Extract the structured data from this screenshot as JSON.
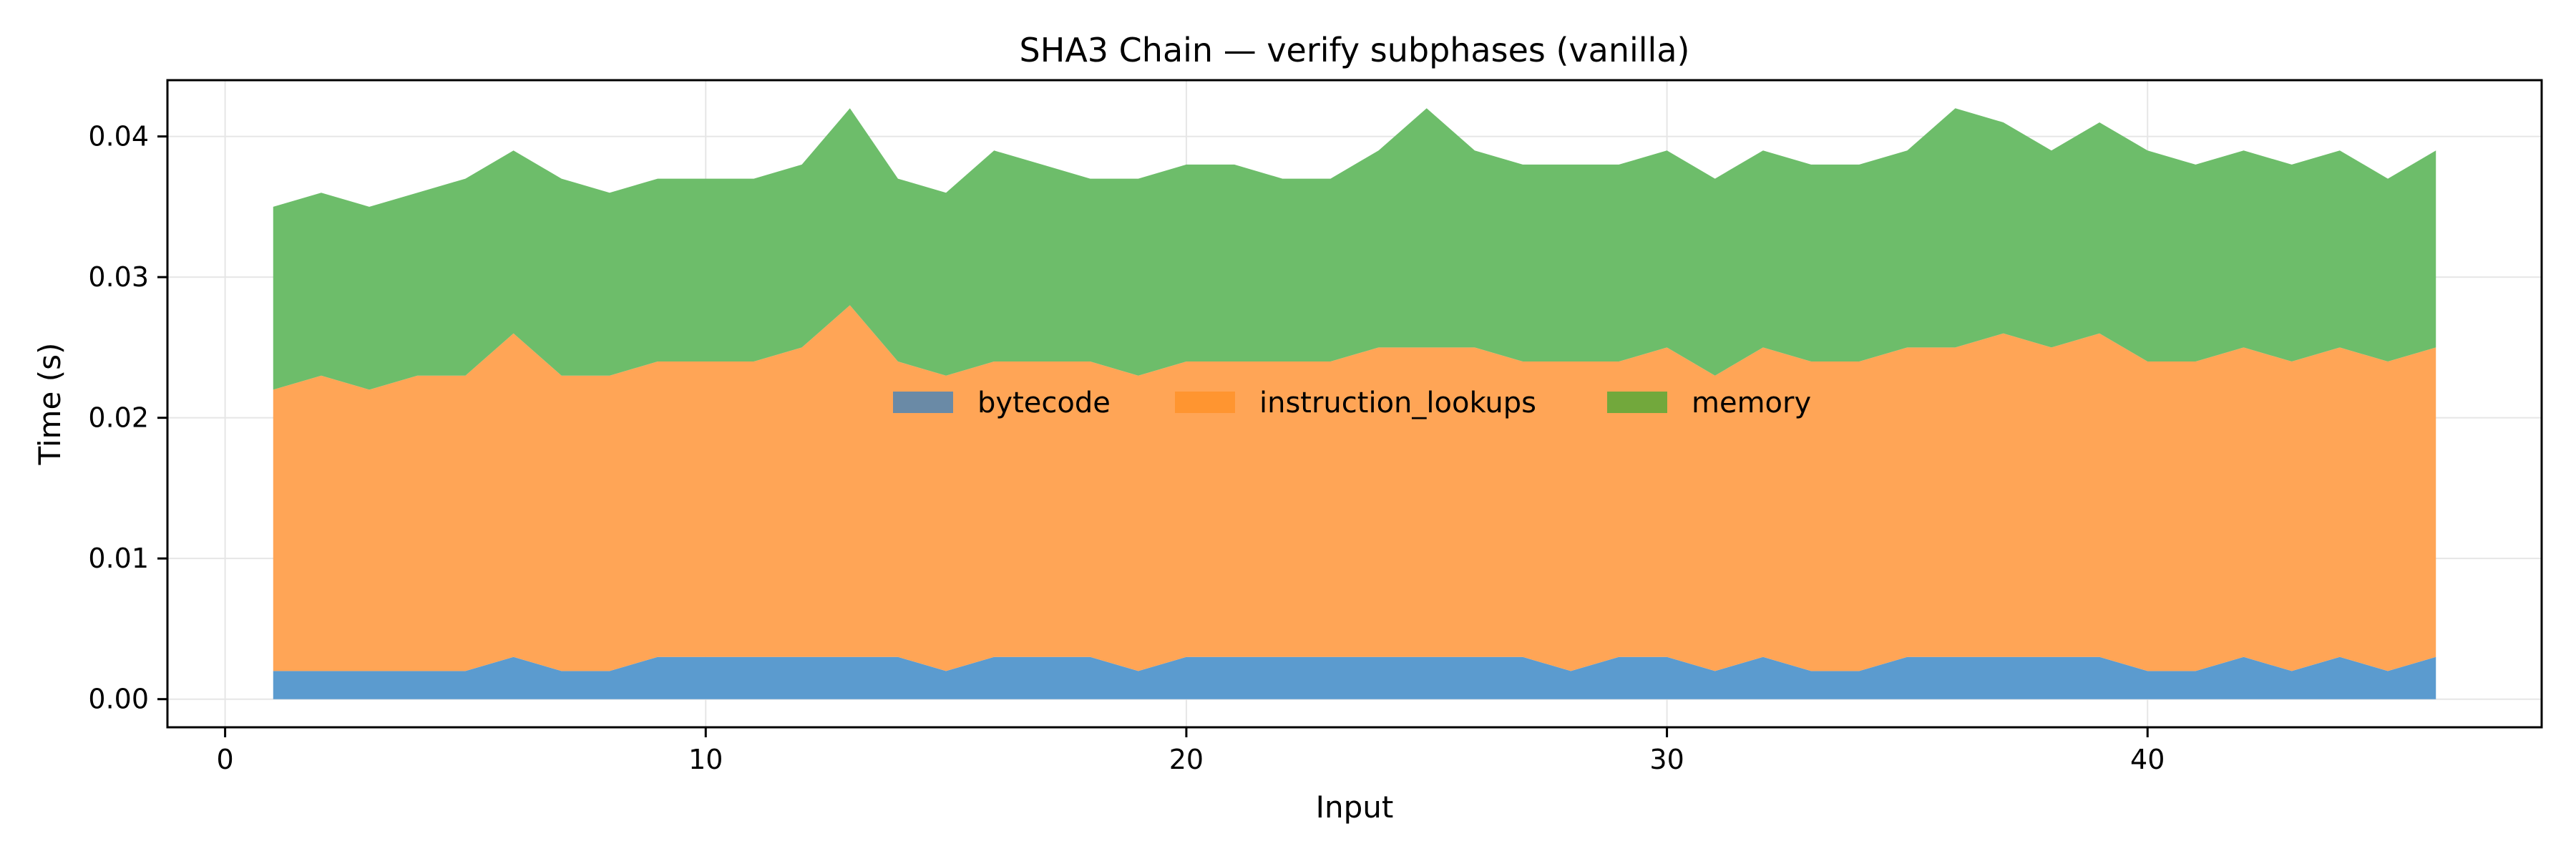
{
  "chart_data": {
    "type": "area",
    "stacked": true,
    "title": "SHA3 Chain — verify subphases (vanilla)",
    "xlabel": "Input",
    "ylabel": "Time (s)",
    "xlim": [
      -1.2,
      48.2
    ],
    "ylim": [
      -0.002,
      0.044
    ],
    "xticks": [
      0,
      10,
      20,
      30,
      40
    ],
    "xtick_labels": [
      "0",
      "10",
      "20",
      "30",
      "40"
    ],
    "yticks": [
      0.0,
      0.01,
      0.02,
      0.03,
      0.04
    ],
    "ytick_labels": [
      "0.00",
      "0.01",
      "0.02",
      "0.03",
      "0.04"
    ],
    "grid": true,
    "legend_position": "center",
    "x": [
      1,
      2,
      3,
      4,
      5,
      6,
      7,
      8,
      9,
      10,
      11,
      12,
      13,
      14,
      15,
      16,
      17,
      18,
      19,
      20,
      21,
      22,
      23,
      24,
      25,
      26,
      27,
      28,
      29,
      30,
      31,
      32,
      33,
      34,
      35,
      36,
      37,
      38,
      39,
      40,
      41,
      42,
      43,
      44,
      45,
      46
    ],
    "series": [
      {
        "name": "bytecode",
        "color": "#5b9bcf",
        "legend_color": "#6a8aa6",
        "values": [
          0.002,
          0.002,
          0.002,
          0.002,
          0.002,
          0.003,
          0.002,
          0.002,
          0.003,
          0.003,
          0.003,
          0.003,
          0.003,
          0.003,
          0.002,
          0.003,
          0.003,
          0.003,
          0.002,
          0.003,
          0.003,
          0.003,
          0.003,
          0.003,
          0.003,
          0.003,
          0.003,
          0.002,
          0.003,
          0.003,
          0.002,
          0.003,
          0.002,
          0.002,
          0.003,
          0.003,
          0.003,
          0.003,
          0.003,
          0.002,
          0.002,
          0.003,
          0.002,
          0.003,
          0.002,
          0.003
        ]
      },
      {
        "name": "instruction_lookups",
        "color": "#ffa556",
        "legend_color": "#ff9530",
        "values": [
          0.02,
          0.021,
          0.02,
          0.021,
          0.021,
          0.023,
          0.021,
          0.021,
          0.021,
          0.021,
          0.021,
          0.022,
          0.025,
          0.021,
          0.021,
          0.021,
          0.021,
          0.021,
          0.021,
          0.021,
          0.021,
          0.021,
          0.021,
          0.022,
          0.022,
          0.022,
          0.021,
          0.022,
          0.021,
          0.022,
          0.021,
          0.022,
          0.022,
          0.022,
          0.022,
          0.022,
          0.023,
          0.022,
          0.023,
          0.022,
          0.022,
          0.022,
          0.022,
          0.022,
          0.022,
          0.022
        ]
      },
      {
        "name": "memory",
        "color": "#6dbd6a",
        "legend_color": "#72a83c",
        "values": [
          0.013,
          0.013,
          0.013,
          0.013,
          0.014,
          0.013,
          0.014,
          0.013,
          0.013,
          0.013,
          0.013,
          0.013,
          0.014,
          0.013,
          0.013,
          0.015,
          0.014,
          0.013,
          0.014,
          0.014,
          0.014,
          0.013,
          0.013,
          0.014,
          0.017,
          0.014,
          0.014,
          0.014,
          0.014,
          0.014,
          0.014,
          0.014,
          0.014,
          0.014,
          0.014,
          0.017,
          0.015,
          0.014,
          0.015,
          0.015,
          0.014,
          0.014,
          0.014,
          0.014,
          0.013,
          0.014
        ]
      }
    ]
  }
}
